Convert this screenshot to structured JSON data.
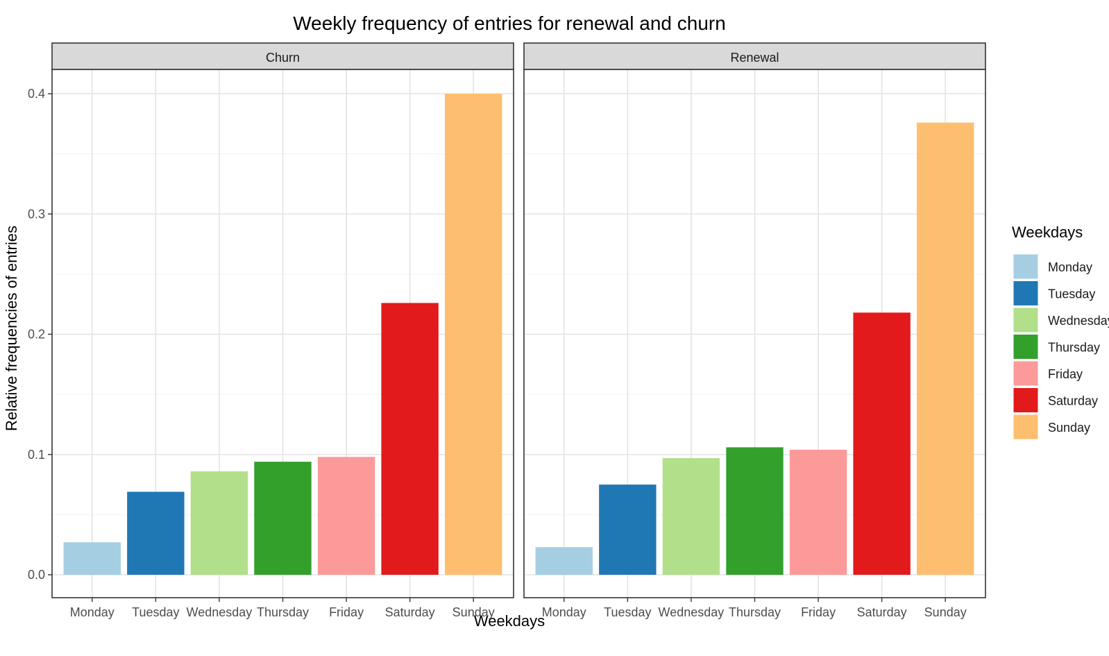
{
  "chart_data": {
    "type": "bar",
    "title": "Weekly frequency of entries for renewal and churn",
    "xlabel": "Weekdays",
    "ylabel": "Relative frequencies of entries",
    "ylim": [
      0,
      0.4
    ],
    "yticks": [
      "0.0",
      "0.1",
      "0.2",
      "0.3",
      "0.4"
    ],
    "grid": true,
    "categories": [
      "Monday",
      "Tuesday",
      "Wednesday",
      "Thursday",
      "Friday",
      "Saturday",
      "Sunday"
    ],
    "colors": [
      "#a6cee3",
      "#1f78b4",
      "#b2df8a",
      "#33a02c",
      "#fb9a99",
      "#e31a1c",
      "#fdbf6f"
    ],
    "legend": {
      "title": "Weekdays",
      "position": "right",
      "entries": [
        "Monday",
        "Tuesday",
        "Wednesday",
        "Thursday",
        "Friday",
        "Saturday",
        "Sunday"
      ]
    },
    "facets": [
      {
        "name": "Churn",
        "values": [
          0.027,
          0.069,
          0.086,
          0.094,
          0.098,
          0.226,
          0.4
        ]
      },
      {
        "name": "Renewal",
        "values": [
          0.023,
          0.075,
          0.097,
          0.106,
          0.104,
          0.218,
          0.376
        ]
      }
    ]
  }
}
